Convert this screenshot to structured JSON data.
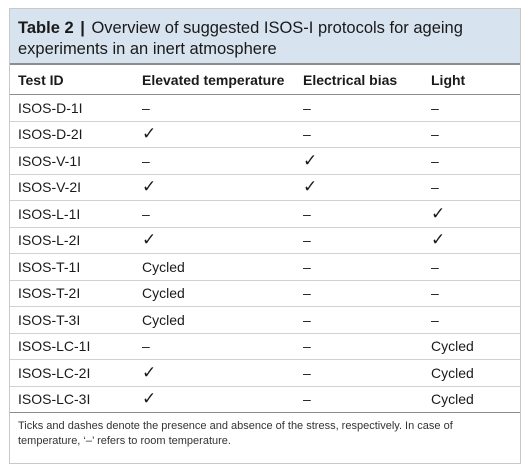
{
  "caption": {
    "label": "Table 2",
    "separator": "|",
    "title": "Overview of suggested ISOS-I protocols for ageing experiments in an inert atmosphere"
  },
  "headers": [
    "Test ID",
    "Elevated temperature",
    "Electrical bias",
    "Light"
  ],
  "rows": [
    [
      "ISOS-D-1I",
      "–",
      "–",
      "–"
    ],
    [
      "ISOS-D-2I",
      "✓",
      "–",
      "–"
    ],
    [
      "ISOS-V-1I",
      "–",
      "✓",
      "–"
    ],
    [
      "ISOS-V-2I",
      "✓",
      "✓",
      "–"
    ],
    [
      "ISOS-L-1I",
      "–",
      "–",
      "✓"
    ],
    [
      "ISOS-L-2I",
      "✓",
      "–",
      "✓"
    ],
    [
      "ISOS-T-1I",
      "Cycled",
      "–",
      "–"
    ],
    [
      "ISOS-T-2I",
      "Cycled",
      "–",
      "–"
    ],
    [
      "ISOS-T-3I",
      "Cycled",
      "–",
      "–"
    ],
    [
      "ISOS-LC-1I",
      "–",
      "–",
      "Cycled"
    ],
    [
      "ISOS-LC-2I",
      "✓",
      "–",
      "Cycled"
    ],
    [
      "ISOS-LC-3I",
      "✓",
      "–",
      "Cycled"
    ]
  ],
  "footnote": "Ticks and dashes denote the presence and absence of the stress, respectively. In case of temperature, ‘–’ refers to room temperature."
}
